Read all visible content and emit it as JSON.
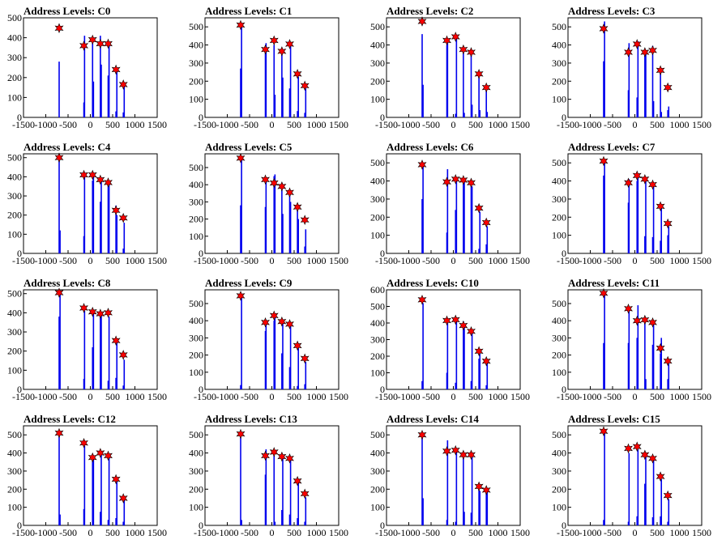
{
  "colors": {
    "histogram": "#0000ee",
    "marker": "#ff0000",
    "marker_edge": "#000000",
    "frame": "#000000"
  },
  "x_ticks": [
    -1500,
    -1000,
    -500,
    0,
    500,
    1000,
    1500
  ],
  "x_range": [
    -1500,
    1500
  ],
  "chart_data": [
    {
      "type": "bar",
      "title": "Address Levels: C0",
      "ylim": [
        0,
        500
      ],
      "y_ticks": [
        0,
        100,
        200,
        300,
        400,
        500
      ],
      "peaks_x": [
        -700,
        -145,
        50,
        225,
        400,
        575,
        740
      ],
      "peaks_y": [
        448,
        360,
        390,
        370,
        370,
        240,
        165
      ],
      "bars": [
        [
          -700,
          280
        ],
        [
          -145,
          75
        ],
        [
          -130,
          410
        ],
        [
          50,
          380
        ],
        [
          70,
          180
        ],
        [
          225,
          410
        ],
        [
          245,
          265
        ],
        [
          400,
          210
        ],
        [
          420,
          360
        ],
        [
          575,
          30
        ],
        [
          595,
          230
        ],
        [
          740,
          25
        ],
        [
          760,
          160
        ]
      ]
    },
    {
      "type": "bar",
      "title": "Address Levels: C1",
      "ylim": [
        0,
        550
      ],
      "y_ticks": [
        0,
        100,
        200,
        300,
        400,
        500
      ],
      "peaks_x": [
        -700,
        -145,
        50,
        225,
        400,
        575,
        740
      ],
      "peaks_y": [
        510,
        375,
        425,
        365,
        405,
        240,
        175
      ],
      "bars": [
        [
          -700,
          270
        ],
        [
          -680,
          500
        ],
        [
          -145,
          355
        ],
        [
          -130,
          410
        ],
        [
          50,
          400
        ],
        [
          70,
          125
        ],
        [
          225,
          365
        ],
        [
          245,
          220
        ],
        [
          400,
          160
        ],
        [
          420,
          395
        ],
        [
          575,
          35
        ],
        [
          595,
          225
        ],
        [
          740,
          25
        ],
        [
          760,
          160
        ]
      ]
    },
    {
      "type": "bar",
      "title": "Address Levels: C2",
      "ylim": [
        0,
        550
      ],
      "y_ticks": [
        0,
        100,
        200,
        300,
        400,
        500
      ],
      "peaks_x": [
        -700,
        -145,
        50,
        225,
        400,
        575,
        740
      ],
      "peaks_y": [
        530,
        425,
        445,
        375,
        360,
        240,
        165
      ],
      "bars": [
        [
          -700,
          460
        ],
        [
          -680,
          180
        ],
        [
          -145,
          400
        ],
        [
          -130,
          420
        ],
        [
          50,
          20
        ],
        [
          70,
          435
        ],
        [
          225,
          365
        ],
        [
          245,
          25
        ],
        [
          400,
          350
        ],
        [
          420,
          70
        ],
        [
          575,
          225
        ],
        [
          595,
          40
        ],
        [
          740,
          150
        ],
        [
          760,
          30
        ]
      ]
    },
    {
      "type": "bar",
      "title": "Address Levels: C3",
      "ylim": [
        0,
        550
      ],
      "y_ticks": [
        0,
        100,
        200,
        300,
        400,
        500
      ],
      "peaks_x": [
        -700,
        -145,
        50,
        225,
        400,
        575,
        740
      ],
      "peaks_y": [
        490,
        360,
        405,
        360,
        370,
        260,
        165
      ],
      "bars": [
        [
          -700,
          310
        ],
        [
          -680,
          530
        ],
        [
          -145,
          150
        ],
        [
          -130,
          410
        ],
        [
          50,
          110
        ],
        [
          70,
          420
        ],
        [
          225,
          340
        ],
        [
          245,
          365
        ],
        [
          400,
          395
        ],
        [
          420,
          90
        ],
        [
          575,
          250
        ],
        [
          595,
          30
        ],
        [
          740,
          40
        ],
        [
          760,
          60
        ]
      ]
    },
    {
      "type": "bar",
      "title": "Address Levels: C4",
      "ylim": [
        0,
        520
      ],
      "y_ticks": [
        0,
        100,
        200,
        300,
        400,
        500
      ],
      "peaks_x": [
        -700,
        -145,
        50,
        225,
        400,
        575,
        740
      ],
      "peaks_y": [
        500,
        410,
        410,
        385,
        370,
        225,
        185
      ],
      "bars": [
        [
          -700,
          505
        ],
        [
          -680,
          120
        ],
        [
          -145,
          90
        ],
        [
          -130,
          410
        ],
        [
          50,
          380
        ],
        [
          70,
          410
        ],
        [
          225,
          270
        ],
        [
          245,
          390
        ],
        [
          400,
          350
        ],
        [
          420,
          360
        ],
        [
          575,
          250
        ],
        [
          595,
          200
        ],
        [
          740,
          25
        ],
        [
          760,
          160
        ]
      ]
    },
    {
      "type": "bar",
      "title": "Address Levels: C5",
      "ylim": [
        0,
        580
      ],
      "y_ticks": [
        0,
        100,
        200,
        300,
        400,
        500
      ],
      "peaks_x": [
        -700,
        -145,
        50,
        225,
        400,
        575,
        740
      ],
      "peaks_y": [
        555,
        430,
        410,
        390,
        355,
        270,
        195
      ],
      "bars": [
        [
          -700,
          280
        ],
        [
          -680,
          560
        ],
        [
          -145,
          270
        ],
        [
          -130,
          440
        ],
        [
          50,
          450
        ],
        [
          70,
          460
        ],
        [
          225,
          410
        ],
        [
          245,
          230
        ],
        [
          400,
          360
        ],
        [
          420,
          300
        ],
        [
          575,
          270
        ],
        [
          595,
          200
        ],
        [
          740,
          40
        ],
        [
          760,
          140
        ]
      ]
    },
    {
      "type": "bar",
      "title": "Address Levels: C6",
      "ylim": [
        0,
        550
      ],
      "y_ticks": [
        0,
        100,
        200,
        300,
        400,
        500
      ],
      "peaks_x": [
        -700,
        -145,
        50,
        225,
        400,
        575,
        740
      ],
      "peaks_y": [
        490,
        395,
        410,
        405,
        390,
        250,
        170
      ],
      "bars": [
        [
          -700,
          300
        ],
        [
          -680,
          500
        ],
        [
          -145,
          115
        ],
        [
          -130,
          465
        ],
        [
          50,
          240
        ],
        [
          70,
          420
        ],
        [
          225,
          410
        ],
        [
          245,
          400
        ],
        [
          400,
          390
        ],
        [
          420,
          370
        ],
        [
          575,
          25
        ],
        [
          595,
          230
        ],
        [
          740,
          50
        ],
        [
          760,
          150
        ]
      ]
    },
    {
      "type": "bar",
      "title": "Address Levels: C7",
      "ylim": [
        0,
        550
      ],
      "y_ticks": [
        0,
        100,
        200,
        300,
        400,
        500
      ],
      "peaks_x": [
        -700,
        -145,
        50,
        225,
        400,
        575,
        740
      ],
      "peaks_y": [
        510,
        390,
        430,
        410,
        380,
        260,
        165
      ],
      "bars": [
        [
          -700,
          430
        ],
        [
          -680,
          500
        ],
        [
          -145,
          280
        ],
        [
          -130,
          410
        ],
        [
          50,
          400
        ],
        [
          70,
          420
        ],
        [
          225,
          95
        ],
        [
          245,
          400
        ],
        [
          400,
          90
        ],
        [
          420,
          380
        ],
        [
          575,
          70
        ],
        [
          595,
          250
        ],
        [
          740,
          100
        ],
        [
          760,
          150
        ]
      ]
    },
    {
      "type": "bar",
      "title": "Address Levels: C8",
      "ylim": [
        0,
        520
      ],
      "y_ticks": [
        0,
        100,
        200,
        300,
        400,
        500
      ],
      "peaks_x": [
        -700,
        -145,
        50,
        225,
        400,
        575,
        740
      ],
      "peaks_y": [
        505,
        425,
        405,
        395,
        400,
        255,
        180
      ],
      "bars": [
        [
          -700,
          380
        ],
        [
          -680,
          500
        ],
        [
          -145,
          55
        ],
        [
          -130,
          410
        ],
        [
          50,
          220
        ],
        [
          70,
          405
        ],
        [
          225,
          390
        ],
        [
          245,
          405
        ],
        [
          400,
          45
        ],
        [
          420,
          380
        ],
        [
          575,
          60
        ],
        [
          595,
          250
        ],
        [
          740,
          20
        ],
        [
          760,
          155
        ]
      ]
    },
    {
      "type": "bar",
      "title": "Address Levels: C9",
      "ylim": [
        0,
        580
      ],
      "y_ticks": [
        0,
        100,
        200,
        300,
        400,
        500
      ],
      "peaks_x": [
        -700,
        -145,
        50,
        225,
        400,
        575,
        740
      ],
      "peaks_y": [
        545,
        390,
        430,
        395,
        380,
        255,
        180
      ],
      "bars": [
        [
          -700,
          25
        ],
        [
          -680,
          540
        ],
        [
          -145,
          340
        ],
        [
          -130,
          390
        ],
        [
          50,
          400
        ],
        [
          70,
          440
        ],
        [
          225,
          210
        ],
        [
          245,
          390
        ],
        [
          400,
          130
        ],
        [
          420,
          370
        ],
        [
          575,
          20
        ],
        [
          595,
          240
        ],
        [
          740,
          30
        ],
        [
          760,
          160
        ]
      ]
    },
    {
      "type": "bar",
      "title": "Address Levels: C10",
      "ylim": [
        0,
        600
      ],
      "y_ticks": [
        0,
        100,
        200,
        300,
        400,
        500,
        600
      ],
      "peaks_x": [
        -700,
        -145,
        50,
        225,
        400,
        575,
        740
      ],
      "peaks_y": [
        540,
        415,
        420,
        385,
        350,
        230,
        170
      ],
      "bars": [
        [
          -700,
          50
        ],
        [
          -680,
          520
        ],
        [
          -145,
          100
        ],
        [
          -130,
          400
        ],
        [
          50,
          40
        ],
        [
          70,
          410
        ],
        [
          225,
          410
        ],
        [
          245,
          380
        ],
        [
          400,
          50
        ],
        [
          420,
          340
        ],
        [
          575,
          185
        ],
        [
          595,
          215
        ],
        [
          740,
          25
        ],
        [
          760,
          160
        ]
      ]
    },
    {
      "type": "bar",
      "title": "Address Levels: C11",
      "ylim": [
        0,
        580
      ],
      "y_ticks": [
        0,
        100,
        200,
        300,
        400,
        500
      ],
      "peaks_x": [
        -700,
        -145,
        50,
        225,
        400,
        575,
        740
      ],
      "peaks_y": [
        560,
        470,
        400,
        405,
        390,
        240,
        165
      ],
      "bars": [
        [
          -700,
          270
        ],
        [
          -680,
          560
        ],
        [
          -145,
          270
        ],
        [
          -130,
          460
        ],
        [
          50,
          300
        ],
        [
          70,
          490
        ],
        [
          225,
          420
        ],
        [
          245,
          60
        ],
        [
          400,
          260
        ],
        [
          420,
          390
        ],
        [
          575,
          210
        ],
        [
          595,
          300
        ],
        [
          740,
          60
        ],
        [
          760,
          150
        ]
      ]
    },
    {
      "type": "bar",
      "title": "Address Levels: C12",
      "ylim": [
        0,
        550
      ],
      "y_ticks": [
        0,
        100,
        200,
        300,
        400,
        500
      ],
      "peaks_x": [
        -700,
        -145,
        50,
        225,
        400,
        575,
        740
      ],
      "peaks_y": [
        510,
        455,
        375,
        400,
        385,
        255,
        150
      ],
      "bars": [
        [
          -700,
          500
        ],
        [
          -680,
          60
        ],
        [
          -145,
          90
        ],
        [
          -130,
          440
        ],
        [
          50,
          390
        ],
        [
          70,
          370
        ],
        [
          225,
          75
        ],
        [
          245,
          390
        ],
        [
          400,
          30
        ],
        [
          420,
          380
        ],
        [
          575,
          40
        ],
        [
          595,
          250
        ],
        [
          740,
          20
        ],
        [
          760,
          140
        ]
      ]
    },
    {
      "type": "bar",
      "title": "Address Levels: C13",
      "ylim": [
        0,
        550
      ],
      "y_ticks": [
        0,
        100,
        200,
        300,
        400,
        500
      ],
      "peaks_x": [
        -700,
        -145,
        50,
        225,
        400,
        575,
        740
      ],
      "peaks_y": [
        505,
        385,
        405,
        380,
        370,
        245,
        175
      ],
      "bars": [
        [
          -700,
          490
        ],
        [
          -680,
          30
        ],
        [
          -145,
          280
        ],
        [
          -130,
          420
        ],
        [
          50,
          410
        ],
        [
          70,
          20
        ],
        [
          225,
          85
        ],
        [
          245,
          380
        ],
        [
          400,
          60
        ],
        [
          420,
          370
        ],
        [
          575,
          40
        ],
        [
          595,
          240
        ],
        [
          740,
          20
        ],
        [
          760,
          155
        ]
      ]
    },
    {
      "type": "bar",
      "title": "Address Levels: C14",
      "ylim": [
        0,
        550
      ],
      "y_ticks": [
        0,
        100,
        200,
        300,
        400,
        500
      ],
      "peaks_x": [
        -700,
        -145,
        50,
        225,
        400,
        575,
        740
      ],
      "peaks_y": [
        500,
        410,
        415,
        390,
        390,
        215,
        195
      ],
      "bars": [
        [
          -700,
          500
        ],
        [
          -680,
          150
        ],
        [
          -145,
          30
        ],
        [
          -130,
          470
        ],
        [
          50,
          20
        ],
        [
          70,
          420
        ],
        [
          225,
          390
        ],
        [
          245,
          75
        ],
        [
          400,
          70
        ],
        [
          420,
          390
        ],
        [
          575,
          200
        ],
        [
          595,
          190
        ],
        [
          740,
          180
        ],
        [
          760,
          200
        ]
      ]
    },
    {
      "type": "bar",
      "title": "Address Levels: C15",
      "ylim": [
        0,
        550
      ],
      "y_ticks": [
        0,
        100,
        200,
        300,
        400,
        500
      ],
      "peaks_x": [
        -700,
        -145,
        50,
        225,
        400,
        575,
        740
      ],
      "peaks_y": [
        520,
        425,
        435,
        390,
        370,
        270,
        165
      ],
      "bars": [
        [
          -700,
          30
        ],
        [
          -680,
          520
        ],
        [
          -145,
          20
        ],
        [
          -130,
          400
        ],
        [
          50,
          50
        ],
        [
          70,
          420
        ],
        [
          225,
          230
        ],
        [
          245,
          380
        ],
        [
          400,
          45
        ],
        [
          420,
          360
        ],
        [
          575,
          50
        ],
        [
          595,
          255
        ],
        [
          740,
          20
        ],
        [
          760,
          145
        ]
      ]
    }
  ]
}
